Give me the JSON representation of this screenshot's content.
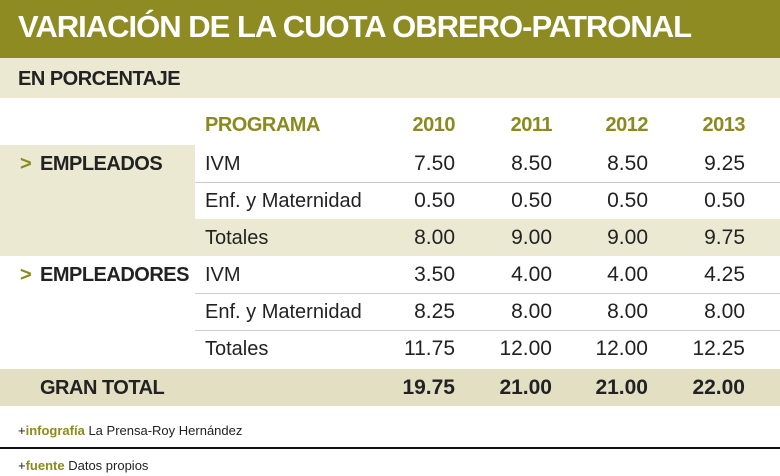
{
  "header": {
    "title": "VARIACIÓN DE LA CUOTA OBRERO-PATRONAL",
    "subtitle": "EN PORCENTAJE"
  },
  "table": {
    "columns": [
      "PROGRAMA",
      "2010",
      "2011",
      "2012",
      "2013"
    ],
    "groups": [
      {
        "marker": ">",
        "label": "EMPLEADOS",
        "rows": [
          [
            "IVM",
            "7.50",
            "8.50",
            "8.50",
            "9.25"
          ],
          [
            "Enf. y Maternidad",
            "0.50",
            "0.50",
            "0.50",
            "0.50"
          ],
          [
            "Totales",
            "8.00",
            "9.00",
            "9.00",
            "9.75"
          ]
        ]
      },
      {
        "marker": ">",
        "label": "EMPLEADORES",
        "rows": [
          [
            "IVM",
            "3.50",
            "4.00",
            "4.00",
            "4.25"
          ],
          [
            "Enf. y Maternidad",
            "8.25",
            "8.00",
            "8.00",
            "8.00"
          ],
          [
            "Totales",
            "11.75",
            "12.00",
            "12.00",
            "12.25"
          ]
        ]
      }
    ],
    "total": {
      "label": "GRAN TOTAL",
      "values": [
        "19.75",
        "21.00",
        "21.00",
        "22.00"
      ]
    }
  },
  "footer": {
    "bullet": "+",
    "credit_label": "infografía",
    "credit": "La Prensa-Roy Hernández",
    "source_label": "fuente",
    "source": "Datos propios"
  }
}
